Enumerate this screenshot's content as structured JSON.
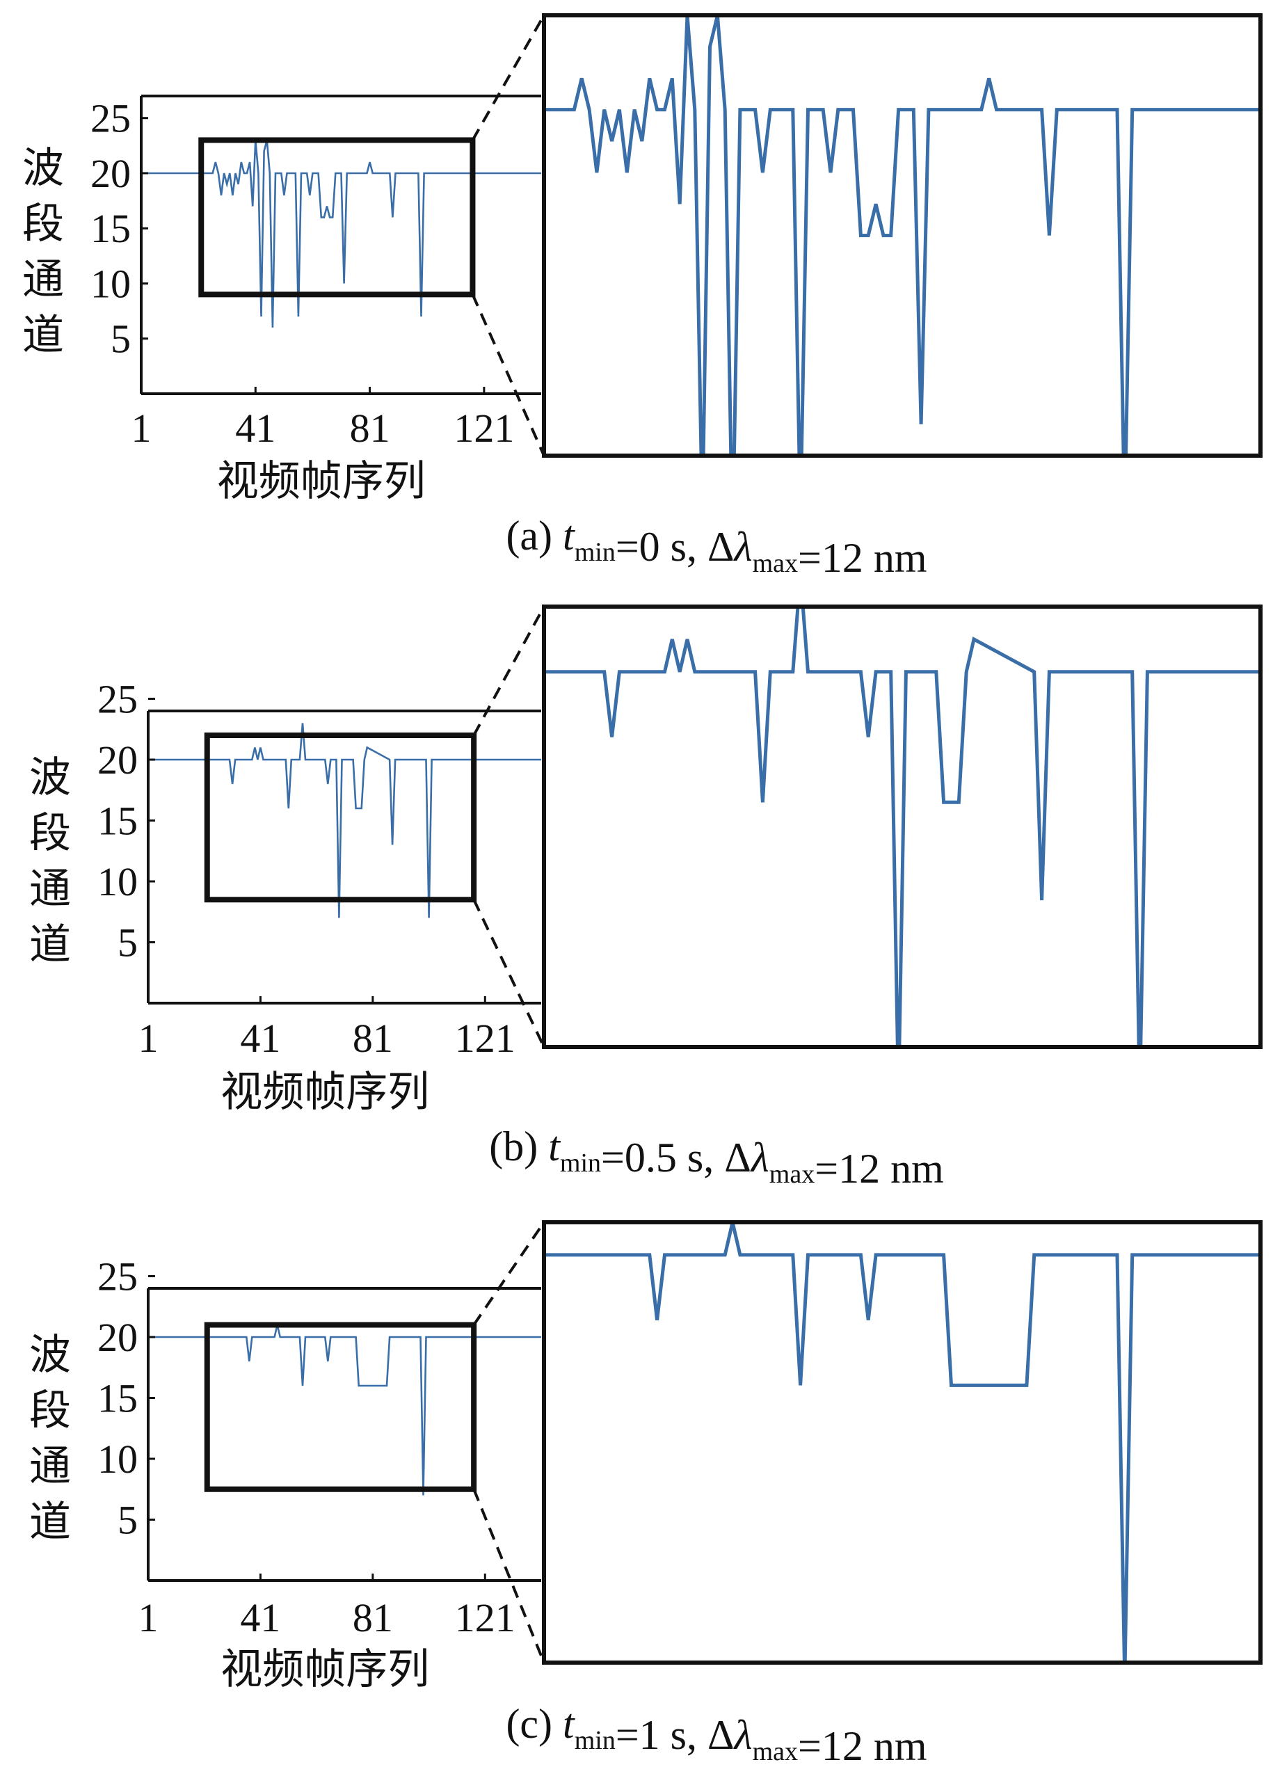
{
  "figure": {
    "y_axis_label": [
      "波",
      "段",
      "通",
      "道"
    ],
    "x_axis_label": "视频帧序列",
    "line_color": "#3a6ea8"
  },
  "chart_data": [
    {
      "type": "line",
      "caption": {
        "prefix": "(a) ",
        "t": "t",
        "t_sub": "min",
        "t_rest": "=0 s, Δ",
        "lambda": "λ",
        "l_sub": "max",
        "l_rest": "=12 nm"
      },
      "xticks": [
        "1",
        "41",
        "81",
        "121"
      ],
      "yticks": [
        "25",
        "20",
        "15",
        "10",
        "5"
      ],
      "xlim": [
        1,
        141
      ],
      "ylim": [
        0,
        27
      ],
      "zoom_box": {
        "x": [
          22,
          117
        ],
        "y": [
          9,
          23
        ]
      },
      "series": [
        {
          "x": [
            1,
            26,
            27,
            28,
            29,
            30,
            31,
            32,
            33,
            34,
            35,
            36,
            37,
            38,
            39,
            40,
            41,
            42,
            43,
            44,
            45,
            46,
            47,
            48,
            49,
            50,
            51,
            52,
            53,
            54,
            55,
            56,
            57,
            58,
            59,
            60,
            61,
            62,
            63,
            64,
            65,
            66,
            67,
            68,
            69,
            70,
            71,
            72,
            73,
            74,
            75,
            76,
            77,
            78,
            79,
            80,
            81,
            82,
            83,
            84,
            85,
            86,
            87,
            88,
            89,
            90,
            91,
            92,
            93,
            94,
            95,
            96,
            97,
            98,
            99,
            100,
            101,
            102,
            103,
            104,
            105,
            106,
            107,
            141
          ],
          "y": [
            20,
            20,
            21,
            20,
            18,
            20,
            19,
            20,
            18,
            20,
            19,
            21,
            20,
            20,
            21,
            17,
            23,
            20,
            7,
            22,
            23,
            20,
            6,
            20,
            20,
            20,
            18,
            20,
            20,
            20,
            20,
            7,
            20,
            20,
            20,
            18,
            20,
            20,
            20,
            16,
            16,
            17,
            16,
            16,
            20,
            20,
            20,
            10,
            20,
            20,
            20,
            20,
            20,
            20,
            20,
            20,
            21,
            20,
            20,
            20,
            20,
            20,
            20,
            20,
            16,
            20,
            20,
            20,
            20,
            20,
            20,
            20,
            20,
            20,
            7,
            20,
            20,
            20,
            20,
            20,
            20,
            20,
            20,
            20
          ]
        }
      ]
    },
    {
      "type": "line",
      "caption": {
        "prefix": "(b) ",
        "t": "t",
        "t_sub": "min",
        "t_rest": "=0.5 s, Δ",
        "lambda": "λ",
        "l_sub": "max",
        "l_rest": "=12 nm"
      },
      "xticks": [
        "1",
        "41",
        "81",
        "121"
      ],
      "yticks": [
        "25",
        "20",
        "15",
        "10",
        "5"
      ],
      "xlim": [
        1,
        141
      ],
      "ylim": [
        0,
        24
      ],
      "zoom_box": {
        "x": [
          22,
          117
        ],
        "y": [
          8.5,
          22
        ]
      },
      "series": [
        {
          "x": [
            1,
            30,
            31,
            32,
            38,
            39,
            40,
            41,
            42,
            43,
            44,
            50,
            51,
            52,
            55,
            56,
            57,
            64,
            65,
            66,
            68,
            69,
            70,
            71,
            74,
            75,
            76,
            77,
            78,
            79,
            87,
            88,
            89,
            100,
            101,
            102,
            141
          ],
          "y": [
            20,
            20,
            18,
            20,
            20,
            21,
            20,
            21,
            20,
            20,
            20,
            20,
            16,
            20,
            20,
            23,
            20,
            20,
            18,
            20,
            20,
            7,
            20,
            20,
            20,
            16,
            16,
            16,
            20,
            21,
            20,
            13,
            20,
            20,
            7,
            20,
            20
          ]
        }
      ]
    },
    {
      "type": "line",
      "caption": {
        "prefix": "(c) ",
        "t": "t",
        "t_sub": "min",
        "t_rest": "=1 s, Δ",
        "lambda": "λ",
        "l_sub": "max",
        "l_rest": "=12 nm"
      },
      "xticks": [
        "1",
        "41",
        "81",
        "121"
      ],
      "yticks": [
        "25",
        "20",
        "15",
        "10",
        "5"
      ],
      "xlim": [
        1,
        141
      ],
      "ylim": [
        0,
        24
      ],
      "zoom_box": {
        "x": [
          22,
          117
        ],
        "y": [
          7.5,
          21
        ]
      },
      "series": [
        {
          "x": [
            1,
            36,
            37,
            38,
            46,
            47,
            48,
            55,
            56,
            57,
            64,
            65,
            66,
            75,
            76,
            86,
            87,
            98,
            99,
            100,
            141
          ],
          "y": [
            20,
            20,
            18,
            20,
            20,
            21,
            20,
            20,
            16,
            20,
            20,
            18,
            20,
            20,
            16,
            16,
            20,
            20,
            7,
            20,
            20
          ]
        }
      ]
    }
  ]
}
